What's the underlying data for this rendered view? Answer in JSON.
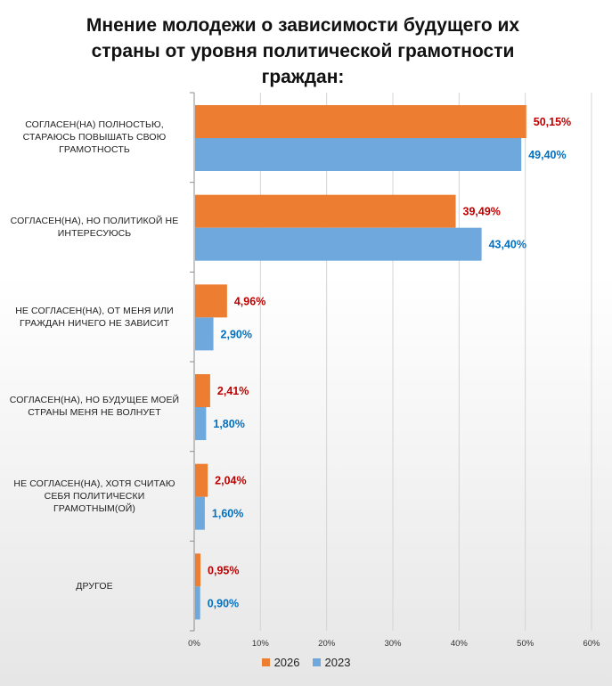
{
  "colors": {
    "series_a": "#ed7d31",
    "series_b": "#6fa8dc"
  },
  "chart_data": {
    "type": "bar",
    "orientation": "horizontal",
    "title": "Мнение молодежи о зависимости будущего их страны от уровня политической грамотности граждан:",
    "title_lines": [
      "Мнение молодежи о зависимости будущего их",
      "страны от уровня политической грамотности",
      "граждан:"
    ],
    "categories": [
      "СОГЛАСЕН(НА) ПОЛНОСТЬЮ, СТАРАЮСЬ ПОВЫШАТЬ СВОЮ ГРАМОТНОСТЬ",
      "СОГЛАСЕН(НА), НО ПОЛИТИКОЙ НЕ ИНТЕРЕСУЮСЬ",
      "НЕ СОГЛАСЕН(НА), ОТ МЕНЯ ИЛИ ГРАЖДАН НИЧЕГО НЕ ЗАВИСИТ",
      "СОГЛАСЕН(НА), НО БУДУЩЕЕ МОЕЙ СТРАНЫ МЕНЯ НЕ ВОЛНУЕТ",
      "НЕ СОГЛАСЕН(НА), ХОТЯ СЧИТАЮ СЕБЯ ПОЛИТИЧЕСКИ ГРАМОТНЫМ(ОЙ)",
      "ДРУГОЕ"
    ],
    "category_lines": [
      [
        "СОГЛАСЕН(НА) ПОЛНОСТЬЮ,",
        "СТАРАЮСЬ ПОВЫШАТЬ СВОЮ",
        "ГРАМОТНОСТЬ"
      ],
      [
        "СОГЛАСЕН(НА), НО ПОЛИТИКОЙ НЕ",
        "ИНТЕРЕСУЮСЬ"
      ],
      [
        "НЕ СОГЛАСЕН(НА), ОТ МЕНЯ ИЛИ",
        "ГРАЖДАН НИЧЕГО НЕ ЗАВИСИТ"
      ],
      [
        "СОГЛАСЕН(НА), НО БУДУЩЕЕ МОЕЙ",
        "СТРАНЫ МЕНЯ НЕ ВОЛНУЕТ"
      ],
      [
        "НЕ СОГЛАСЕН(НА), ХОТЯ СЧИТАЮ",
        "СЕБЯ ПОЛИТИЧЕСКИ",
        "ГРАМОТНЫМ(ОЙ)"
      ],
      [
        "ДРУГОЕ"
      ]
    ],
    "series": [
      {
        "name": "2026",
        "values": [
          50.15,
          39.49,
          4.96,
          2.41,
          2.04,
          0.95
        ],
        "labels": [
          "50,15%",
          "39,49%",
          "4,96%",
          "2,41%",
          "2,04%",
          "0,95%"
        ]
      },
      {
        "name": "2023",
        "values": [
          49.4,
          43.4,
          2.9,
          1.8,
          1.6,
          0.9
        ],
        "labels": [
          "49,40%",
          "43,40%",
          "2,90%",
          "1,80%",
          "1,60%",
          "0,90%"
        ]
      }
    ],
    "xlim": [
      0,
      60
    ],
    "x_ticks": [
      0,
      10,
      20,
      30,
      40,
      50,
      60
    ],
    "x_tick_labels": [
      "0%",
      "10%",
      "20%",
      "30%",
      "40%",
      "50%",
      "60%"
    ],
    "grid": true,
    "legend_position": "bottom"
  }
}
